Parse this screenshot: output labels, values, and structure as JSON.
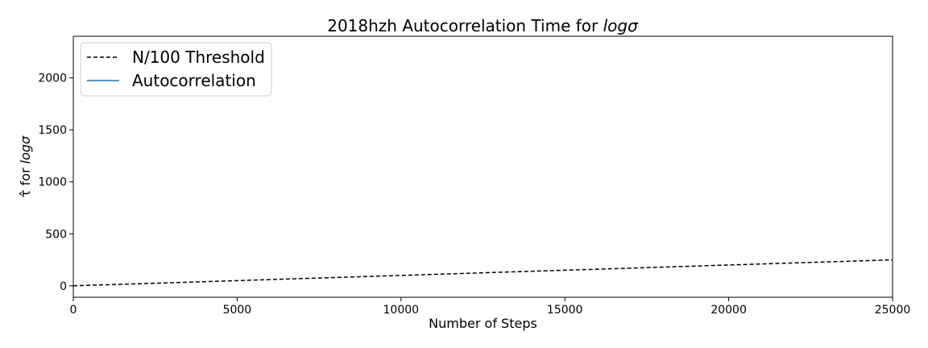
{
  "chart_data": {
    "type": "line",
    "title_prefix": "2018hzh Autocorrelation Time for ",
    "title_math": "logσ",
    "xlabel": "Number of Steps",
    "ylabel_prefix": "τ̂ for ",
    "ylabel_math": "logσ",
    "xlim": [
      0,
      25000
    ],
    "ylim": [
      -110,
      2400
    ],
    "xticks": [
      0,
      5000,
      10000,
      15000,
      20000,
      25000
    ],
    "yticks": [
      0,
      500,
      1000,
      1500,
      2000
    ],
    "grid": false,
    "legend_position": "upper-left",
    "series": [
      {
        "name": "N/100 Threshold",
        "style": "dashed",
        "color": "#000000",
        "x": [
          0,
          25000
        ],
        "y": [
          0,
          250
        ]
      },
      {
        "name": "Autocorrelation",
        "style": "solid",
        "color": "#1f77b4",
        "x": [],
        "y": []
      }
    ]
  }
}
